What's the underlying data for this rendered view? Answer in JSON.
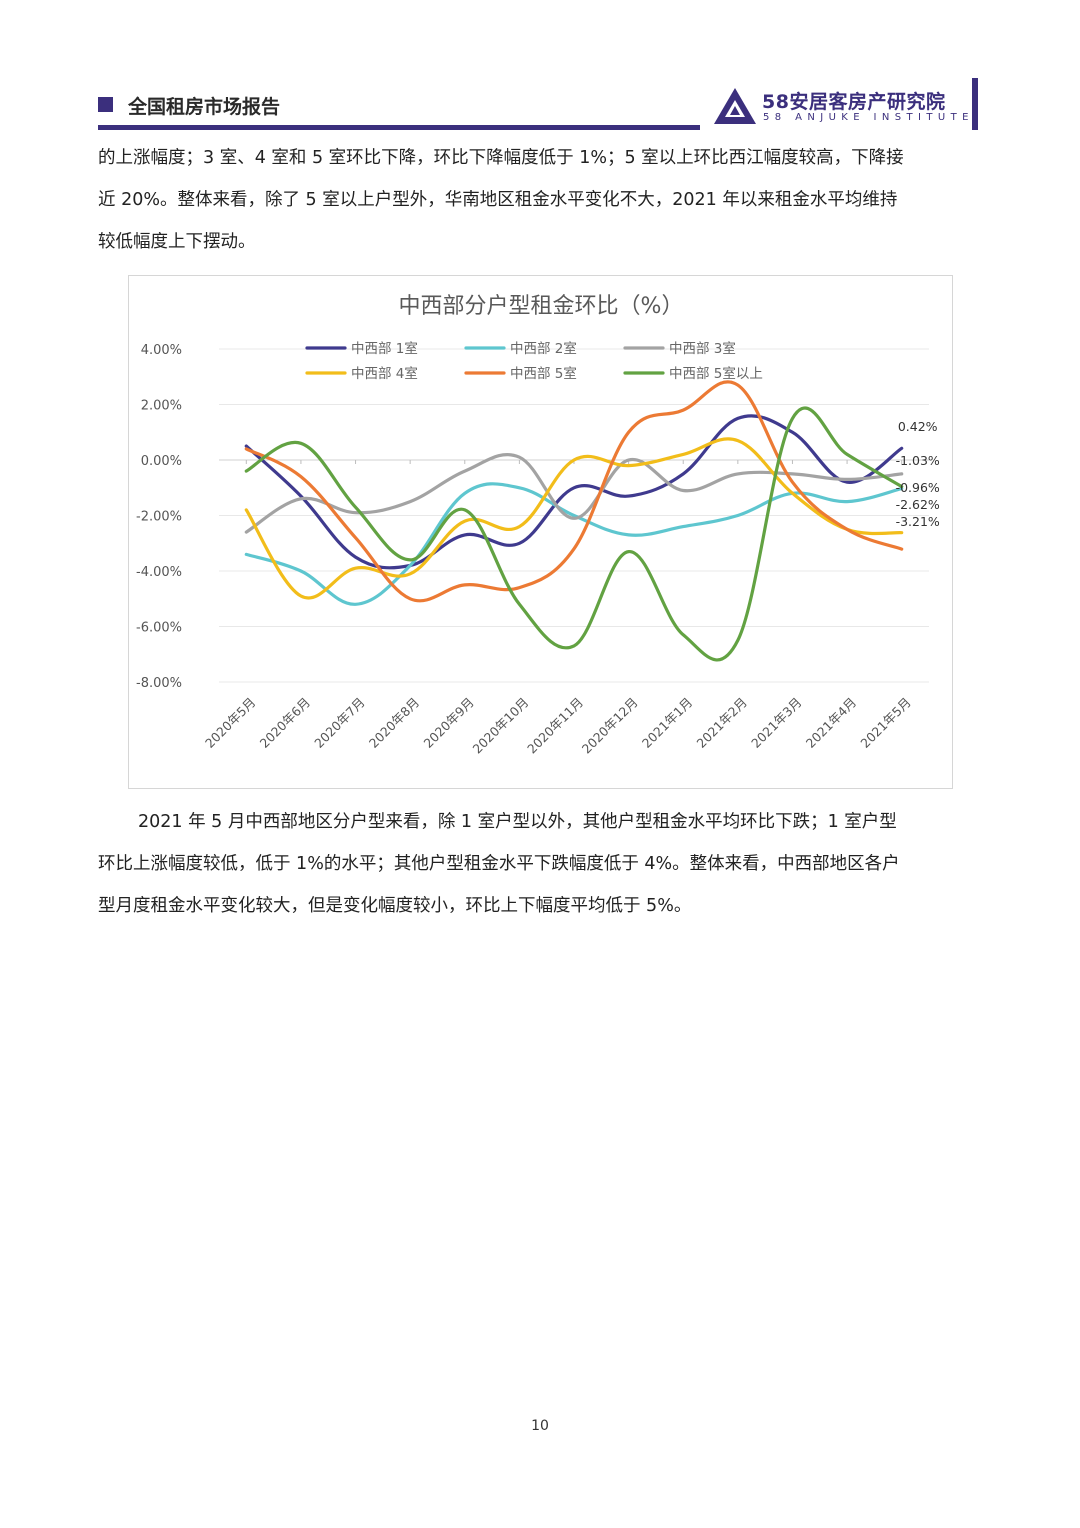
{
  "header": {
    "title": "全国租房市场报告",
    "logo_cn": "58安居客房产研究院",
    "logo_en": "58 ANJUKE INSTITUTE"
  },
  "paragraph_top": {
    "lines": [
      "的上涨幅度；3 室、4 室和 5 室环比下降，环比下降幅度低于 1%；5 室以上环比西江幅度较高，下降接",
      "近 20%。整体来看，除了 5 室以上户型外，华南地区租金水平变化不大，2021 年以来租金水平均维持",
      "较低幅度上下摆动。"
    ]
  },
  "paragraph_bottom": {
    "lines": [
      "2021 年 5 月中西部地区分户型来看，除 1 室户型以外，其他户型租金水平均环比下跌；1 室户型",
      "环比上涨幅度较低，低于 1%的水平；其他户型租金水平下跌幅度低于 4%。整体来看，中西部地区各户",
      "型月度租金水平变化较大，但是变化幅度较小，环比上下幅度平均低于 5%。"
    ]
  },
  "chart_data": {
    "type": "line",
    "title": "中西部分户型租金环比（%）",
    "categories": [
      "2020年5月",
      "2020年6月",
      "2020年7月",
      "2020年8月",
      "2020年9月",
      "2020年10月",
      "2020年11月",
      "2020年12月",
      "2021年1月",
      "2021年2月",
      "2021年3月",
      "2021年4月",
      "2021年5月"
    ],
    "ylim": [
      -8,
      4
    ],
    "y_ticks": [
      4,
      2,
      0,
      -2,
      -4,
      -6,
      -8
    ],
    "y_tick_labels": [
      "4.00%",
      "2.00%",
      "0.00%",
      "-2.00%",
      "-4.00%",
      "-6.00%",
      "-8.00%"
    ],
    "legend_placement": "top",
    "series": [
      {
        "name": "中西部 1室",
        "color": "#3f3a8e",
        "values": [
          0.5,
          -1.3,
          -3.5,
          -3.8,
          -2.7,
          -3.0,
          -1.0,
          -1.3,
          -0.5,
          1.5,
          1.0,
          -0.8,
          0.42
        ]
      },
      {
        "name": "中西部 2室",
        "color": "#5ec6cf",
        "values": [
          -3.4,
          -4.0,
          -5.2,
          -3.8,
          -1.2,
          -1.0,
          -2.0,
          -2.7,
          -2.4,
          -2.0,
          -1.2,
          -1.5,
          -1.03
        ]
      },
      {
        "name": "中西部 3室",
        "color": "#a3a3a3",
        "values": [
          -2.6,
          -1.4,
          -1.9,
          -1.5,
          -0.4,
          0.1,
          -2.1,
          0.0,
          -1.1,
          -0.5,
          -0.5,
          -0.7,
          -0.5
        ]
      },
      {
        "name": "中西部 4室",
        "color": "#f2bd1a",
        "values": [
          -1.8,
          -4.9,
          -3.9,
          -4.1,
          -2.2,
          -2.4,
          0.0,
          -0.2,
          0.2,
          0.7,
          -1.2,
          -2.5,
          -2.62
        ]
      },
      {
        "name": "中西部 5室",
        "color": "#ec7a34",
        "values": [
          0.4,
          -0.6,
          -2.8,
          -5.0,
          -4.5,
          -4.6,
          -3.2,
          1.0,
          1.8,
          2.7,
          -0.8,
          -2.5,
          -3.21
        ]
      },
      {
        "name": "中西部 5室以上",
        "color": "#62a242",
        "values": [
          -0.4,
          0.6,
          -1.7,
          -3.6,
          -1.8,
          -5.2,
          -6.7,
          -3.3,
          -6.3,
          -6.5,
          1.5,
          0.2,
          -0.96
        ]
      }
    ],
    "data_labels": [
      "0.42%",
      "-1.03%",
      "-0.96%",
      "-2.62%",
      "-3.21%"
    ]
  },
  "page_number": "10"
}
